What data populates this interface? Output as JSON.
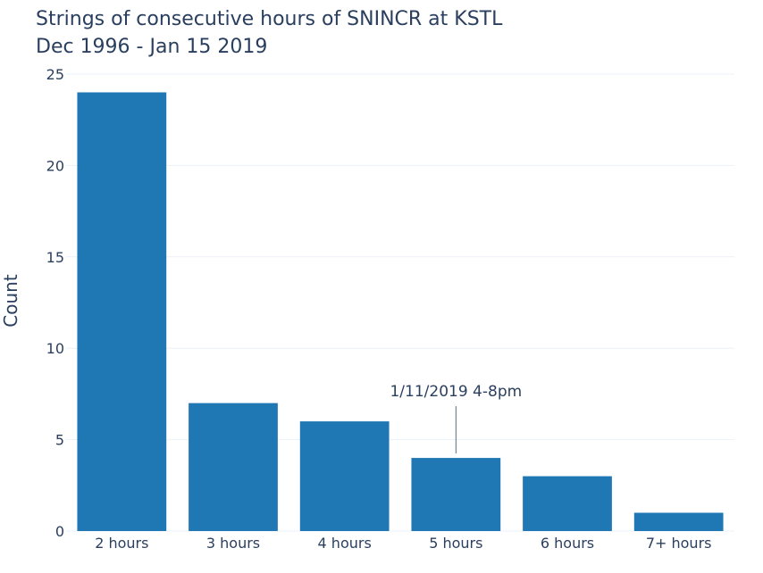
{
  "chart_data": {
    "type": "bar",
    "title": "Strings of consecutive hours of SNINCR at KSTL",
    "subtitle": "Dec 1996 - Jan 15 2019",
    "xlabel": "",
    "ylabel": "Count",
    "categories": [
      "2 hours",
      "3 hours",
      "4 hours",
      "5 hours",
      "6 hours",
      "7+ hours"
    ],
    "values": [
      24,
      7,
      6,
      4,
      3,
      1
    ],
    "ylim": [
      0,
      25
    ],
    "yticks": [
      0,
      5,
      10,
      15,
      20,
      25
    ],
    "bar_color": "#1f77b4",
    "grid": true,
    "annotations": [
      {
        "text": "1/11/2019 4-8pm",
        "category": "5 hours",
        "value": 4
      }
    ]
  }
}
